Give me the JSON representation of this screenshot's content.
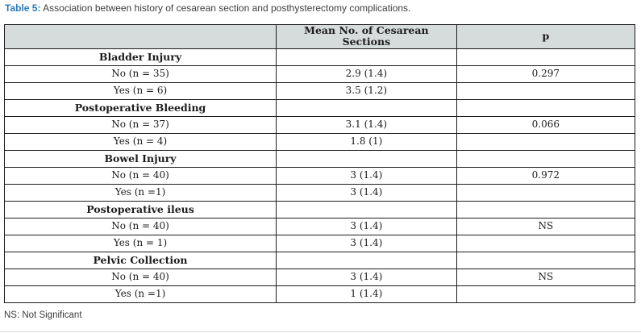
{
  "caption": {
    "label": "Table 5:",
    "text": " Association between history of cesarean section and posthysterectomy complications."
  },
  "table": {
    "columns": {
      "variable": "",
      "mean": "Mean No. of Cesarean Sections",
      "p": "p"
    },
    "sections": [
      {
        "name": "Bladder Injury",
        "rows": [
          {
            "label": "No (n = 35)",
            "mean": "2.9 (1.4)",
            "p": "0.297"
          },
          {
            "label": "Yes (n = 6)",
            "mean": "3.5 (1.2)",
            "p": ""
          }
        ]
      },
      {
        "name": "Postoperative Bleeding",
        "rows": [
          {
            "label": "No (n = 37)",
            "mean": "3.1 (1.4)",
            "p": "0.066"
          },
          {
            "label": "Yes (n = 4)",
            "mean": "1.8 (1)",
            "p": ""
          }
        ]
      },
      {
        "name": "Bowel Injury",
        "rows": [
          {
            "label": "No (n = 40)",
            "mean": "3 (1.4)",
            "p": "0.972"
          },
          {
            "label": "Yes (n =1)",
            "mean": "3 (1.4)",
            "p": ""
          }
        ]
      },
      {
        "name": "Postoperative ileus",
        "rows": [
          {
            "label": "No (n = 40)",
            "mean": "3 (1.4)",
            "p": "NS"
          },
          {
            "label": "Yes (n = 1)",
            "mean": "3 (1.4)",
            "p": ""
          }
        ]
      },
      {
        "name": "Pelvic Collection",
        "rows": [
          {
            "label": "No (n = 40)",
            "mean": "3 (1.4)",
            "p": "NS"
          },
          {
            "label": "Yes (n =1)",
            "mean": "1 (1.4)",
            "p": ""
          }
        ]
      }
    ]
  },
  "footnote": "NS: Not Significant",
  "colors": {
    "caption_accent": "#2b7bb9",
    "header_bg": "#d6dbdb",
    "border": "#1c1c1c",
    "text": "#1c1c1c",
    "footnote_text": "#3c3c3c"
  }
}
